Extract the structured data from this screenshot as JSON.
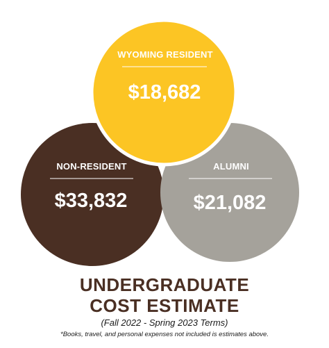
{
  "colors": {
    "resident": "#FCC524",
    "nonresident": "#4A2F23",
    "alumni": "#A5A29B",
    "title": "#4A2F23",
    "text_on_circle": "#FFFFFF",
    "background": "#FFFFFF"
  },
  "circles": {
    "resident": {
      "label": "WYOMING RESIDENT",
      "amount": "$18,682"
    },
    "nonresident": {
      "label": "NON-RESIDENT",
      "amount": "$33,832"
    },
    "alumni": {
      "label": "ALUMNI",
      "amount": "$21,082"
    }
  },
  "title": {
    "line1": "UNDERGRADUATE",
    "line2": "COST ESTIMATE",
    "subtitle": "(Fall 2022 - Spring 2023 Terms)",
    "footnote": "*Books, travel, and personal expenses not included is estimates above."
  }
}
